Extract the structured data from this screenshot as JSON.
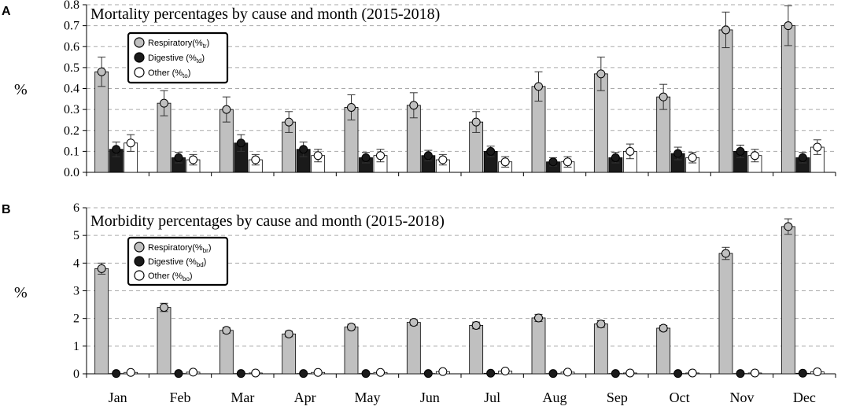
{
  "chart_data": [
    {
      "panel_label": "A",
      "type": "bar",
      "title": "Mortality percentages by cause and month (2015-2018)",
      "ylabel": "%",
      "xlabel": "",
      "ylim": [
        0,
        0.8
      ],
      "yticks": [
        "0.0",
        "0.1",
        "0.2",
        "0.3",
        "0.4",
        "0.5",
        "0.6",
        "0.7",
        "0.8"
      ],
      "grid": true,
      "legend_position": "top-left",
      "categories": [
        "Jan",
        "Feb",
        "Mar",
        "Apr",
        "May",
        "Jun",
        "Jul",
        "Aug",
        "Sep",
        "Oct",
        "Nov",
        "Dec"
      ],
      "series": [
        {
          "name": "Respiratory",
          "legend_label": "Respiratory(%",
          "legend_sub": "tr",
          "color": "#c0c0c0",
          "marker_color": "#c0c0c0",
          "values": [
            0.48,
            0.33,
            0.3,
            0.24,
            0.31,
            0.32,
            0.24,
            0.41,
            0.47,
            0.36,
            0.68,
            0.7
          ],
          "errors": [
            0.07,
            0.06,
            0.06,
            0.05,
            0.06,
            0.06,
            0.05,
            0.07,
            0.08,
            0.06,
            0.085,
            0.095
          ]
        },
        {
          "name": "Digestive",
          "legend_label": "Digestive   (%",
          "legend_sub": "td",
          "color": "#1a1a1a",
          "marker_color": "#1a1a1a",
          "values": [
            0.11,
            0.07,
            0.14,
            0.11,
            0.07,
            0.08,
            0.1,
            0.05,
            0.07,
            0.09,
            0.1,
            0.07
          ],
          "errors": [
            0.035,
            0.025,
            0.04,
            0.035,
            0.025,
            0.025,
            0.025,
            0.02,
            0.025,
            0.03,
            0.03,
            0.025
          ]
        },
        {
          "name": "Other",
          "legend_label": "Other        (%",
          "legend_sub": "to",
          "color": "#ffffff",
          "marker_color": "#ffffff",
          "values": [
            0.14,
            0.06,
            0.06,
            0.08,
            0.08,
            0.06,
            0.05,
            0.05,
            0.1,
            0.07,
            0.08,
            0.12
          ],
          "errors": [
            0.04,
            0.025,
            0.025,
            0.03,
            0.03,
            0.025,
            0.025,
            0.025,
            0.035,
            0.025,
            0.03,
            0.035
          ]
        }
      ]
    },
    {
      "panel_label": "B",
      "type": "bar",
      "title": "Morbidity percentages by cause and month (2015-2018)",
      "ylabel": "%",
      "xlabel": "",
      "ylim": [
        0,
        6
      ],
      "yticks": [
        "0",
        "1",
        "2",
        "3",
        "4",
        "5",
        "6"
      ],
      "grid": true,
      "legend_position": "top-left",
      "categories": [
        "Jan",
        "Feb",
        "Mar",
        "Apr",
        "May",
        "Jun",
        "Jul",
        "Aug",
        "Sep",
        "Oct",
        "Nov",
        "Dec"
      ],
      "series": [
        {
          "name": "Respiratory",
          "legend_label": "Respiratory(%",
          "legend_sub": "br",
          "color": "#c0c0c0",
          "marker_color": "#c0c0c0",
          "values": [
            3.8,
            2.4,
            1.57,
            1.44,
            1.69,
            1.86,
            1.75,
            2.02,
            1.8,
            1.65,
            4.35,
            5.32
          ],
          "errors": [
            0.2,
            0.15,
            0.1,
            0.1,
            0.1,
            0.1,
            0.12,
            0.13,
            0.12,
            0.1,
            0.22,
            0.28
          ]
        },
        {
          "name": "Digestive",
          "legend_label": "Digestive    (%",
          "legend_sub": "bd",
          "color": "#1a1a1a",
          "marker_color": "#1a1a1a",
          "values": [
            0.01,
            0.01,
            0.01,
            0.01,
            0.01,
            0.01,
            0.02,
            0.01,
            0.01,
            0.01,
            0.01,
            0.02
          ],
          "errors": [
            0.01,
            0.01,
            0.01,
            0.01,
            0.01,
            0.01,
            0.01,
            0.01,
            0.01,
            0.01,
            0.01,
            0.01
          ]
        },
        {
          "name": "Other",
          "legend_label": "Other         (%",
          "legend_sub": "bo",
          "color": "#ffffff",
          "marker_color": "#ffffff",
          "values": [
            0.05,
            0.06,
            0.03,
            0.05,
            0.05,
            0.08,
            0.1,
            0.06,
            0.03,
            0.03,
            0.03,
            0.07
          ],
          "errors": [
            0.02,
            0.02,
            0.01,
            0.02,
            0.02,
            0.03,
            0.03,
            0.02,
            0.01,
            0.01,
            0.01,
            0.02
          ]
        }
      ]
    }
  ]
}
